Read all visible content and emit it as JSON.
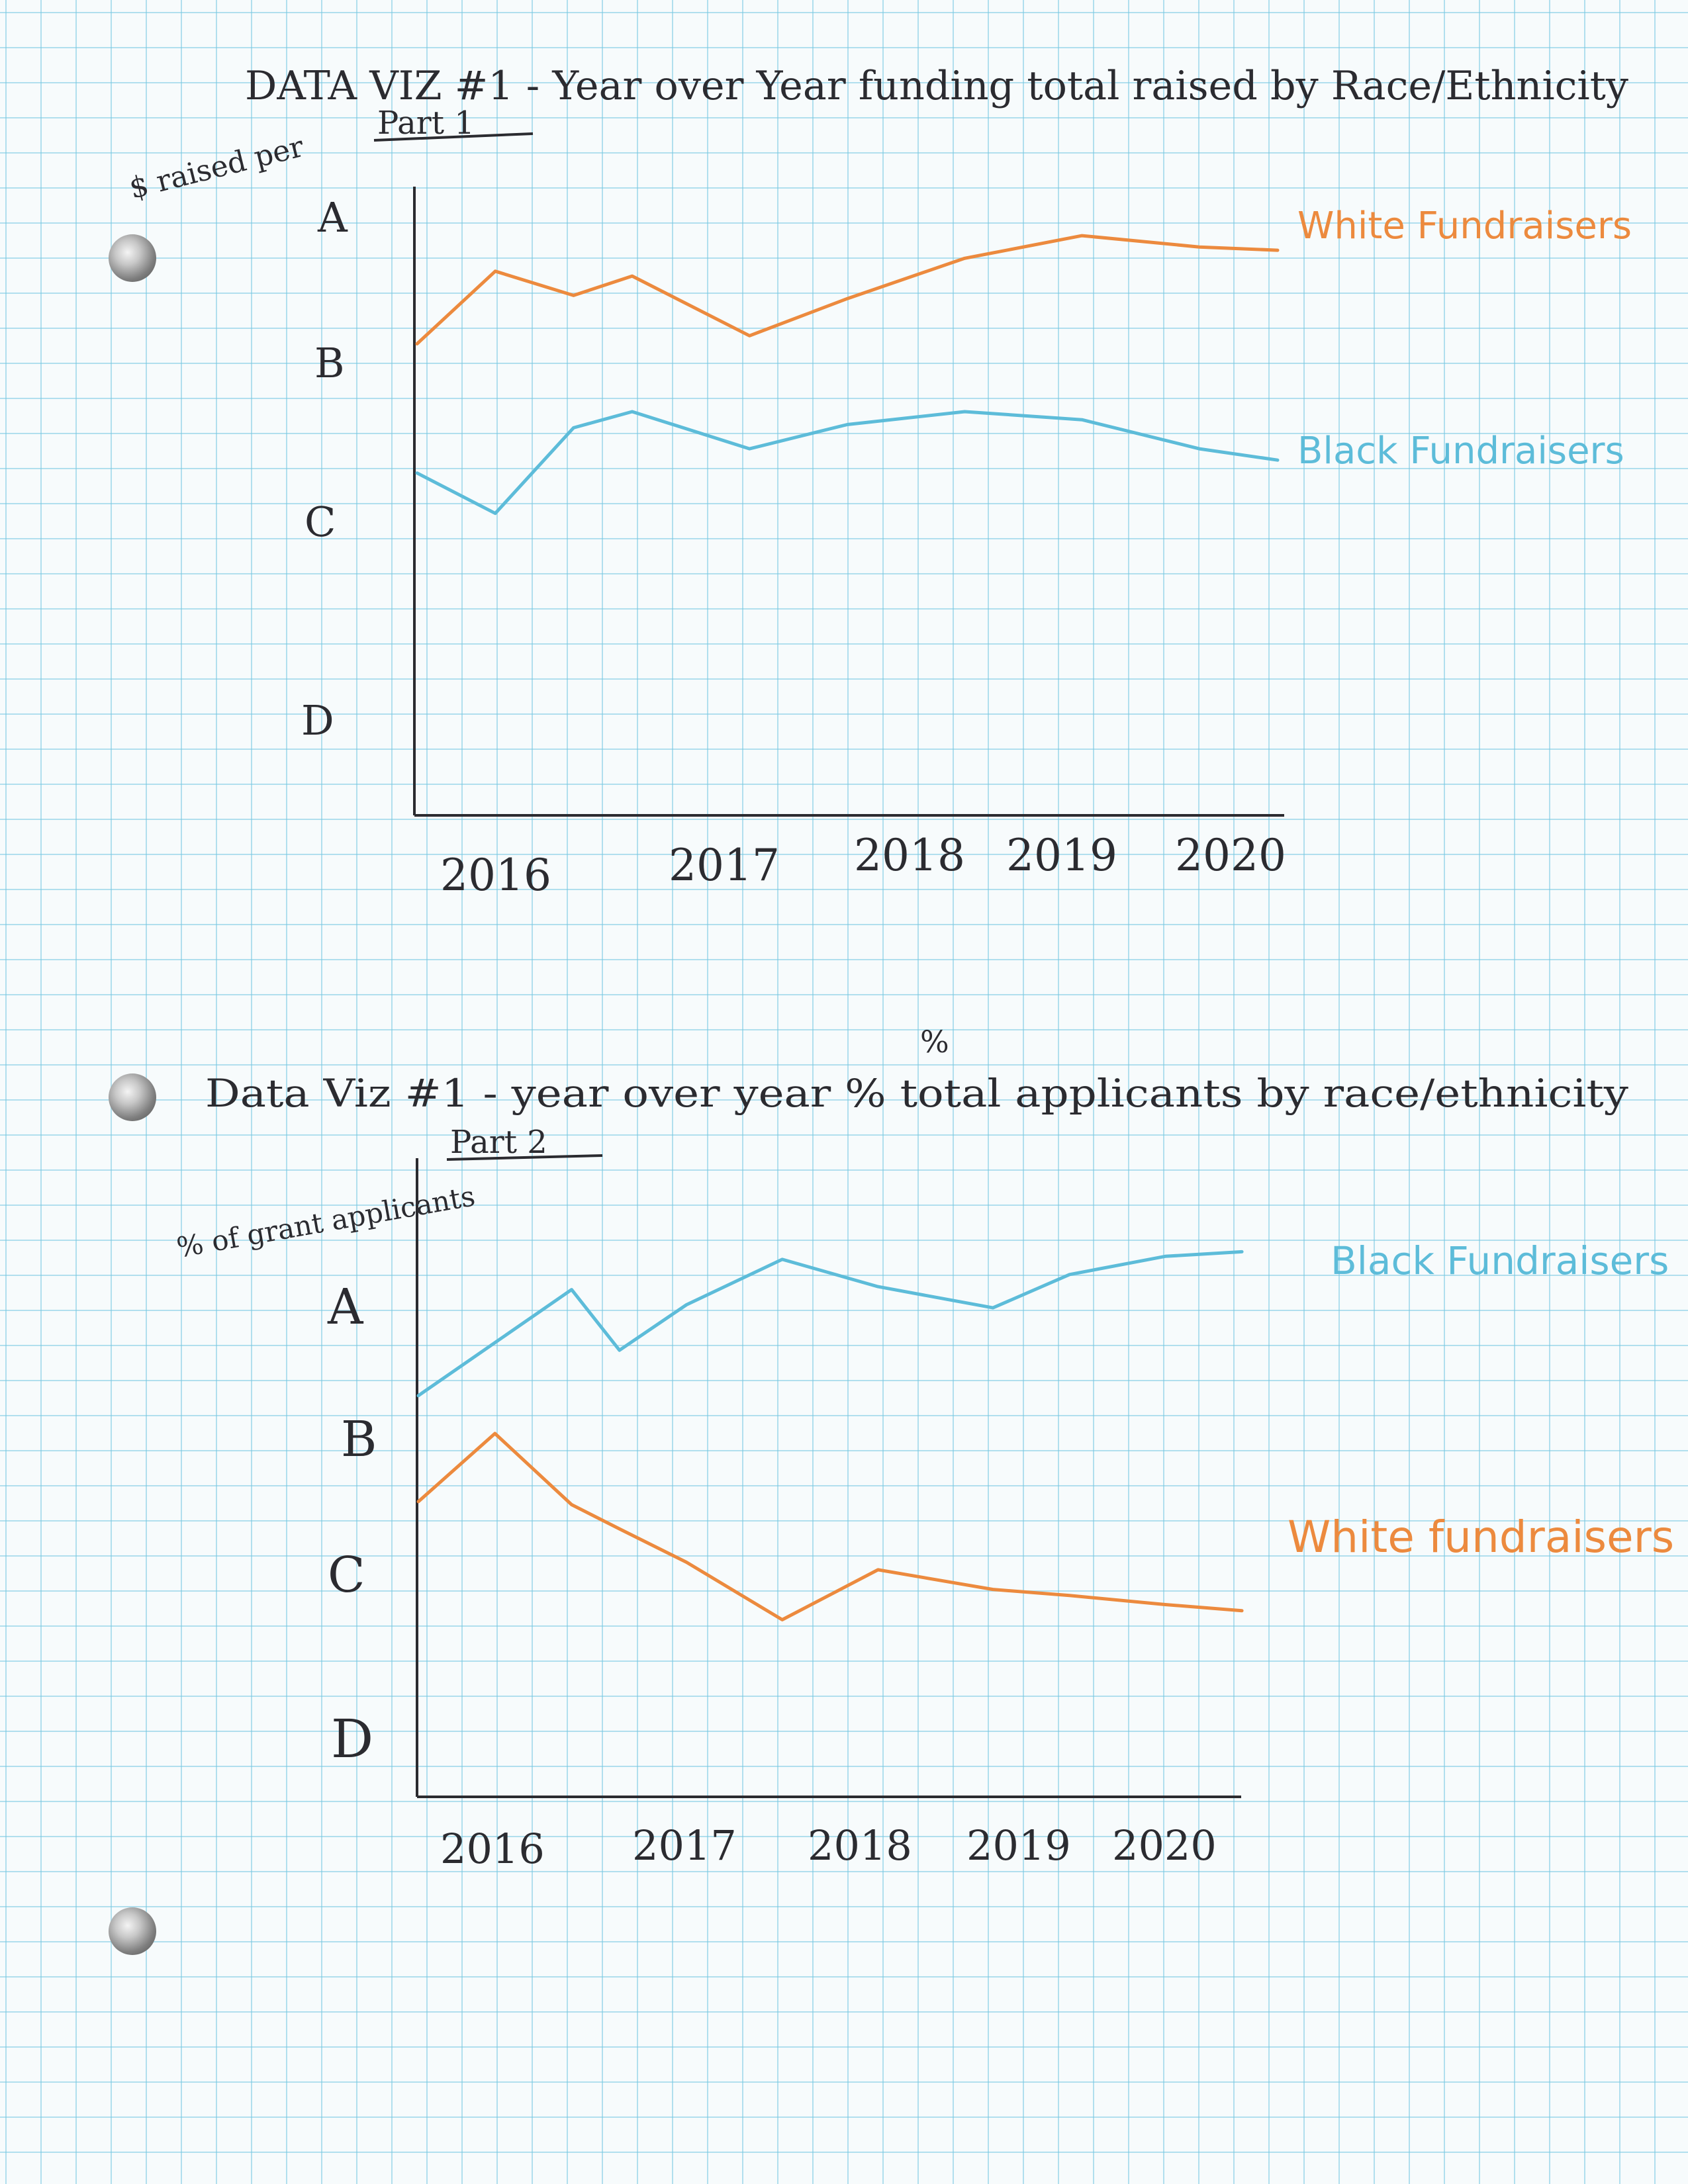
{
  "page": {
    "part2_title_insert": "%"
  },
  "colors": {
    "white_fundraisers": "#ec8a3e",
    "black_fundraisers": "#5dbcd9",
    "ink": "#2b2b30",
    "grid": "#8fd0e6"
  },
  "chart_data": [
    {
      "type": "line",
      "title": "DATA VIZ #1 - Year over Year funding total raised by Race/Ethnicity",
      "subtitle": "Part 1",
      "ylabel": "$ raised per",
      "xlabel": "",
      "x_ticks": [
        "2016",
        "2017",
        "2018",
        "2019",
        "2020"
      ],
      "y_ticks": [
        "A",
        "B",
        "C",
        "D"
      ],
      "ylim": [
        "D",
        "A"
      ],
      "grid": true,
      "legend": "right, labels at line ends",
      "x": [
        2015.8,
        2016.2,
        2016.6,
        2016.9,
        2017.5,
        2018.0,
        2018.6,
        2019.2,
        2019.8,
        2020.2
      ],
      "series": [
        {
          "name": "White Fundraisers",
          "color": "#ec8a3e",
          "values": [
            2.4,
            2.85,
            2.7,
            2.82,
            2.45,
            2.68,
            2.93,
            3.07,
            3.0,
            2.98
          ]
        },
        {
          "name": "Black Fundraisers",
          "color": "#5dbcd9",
          "values": [
            1.6,
            1.35,
            1.88,
            1.98,
            1.75,
            1.9,
            1.98,
            1.93,
            1.75,
            1.68
          ]
        }
      ]
    },
    {
      "type": "line",
      "title": "Data Viz #1 - year over year % total applicants by race/ethnicity",
      "subtitle": "Part 2",
      "ylabel": "% of grant applicants",
      "xlabel": "",
      "x_ticks": [
        "2016",
        "2017",
        "2018",
        "2019",
        "2020"
      ],
      "y_ticks": [
        "A",
        "B",
        "C",
        "D"
      ],
      "ylim": [
        "D",
        "A"
      ],
      "grid": true,
      "legend": "right, labels at line ends",
      "x": [
        2015.8,
        2016.2,
        2016.6,
        2016.85,
        2017.2,
        2017.7,
        2018.2,
        2018.8,
        2019.2,
        2019.7,
        2020.1
      ],
      "series": [
        {
          "name": "Black Fundraisers",
          "color": "#5dbcd9",
          "values": [
            2.3,
            2.65,
            3.0,
            2.6,
            2.9,
            3.2,
            3.02,
            2.88,
            3.1,
            3.22,
            3.25
          ]
        },
        {
          "name": "White fundraisers",
          "color": "#ec8a3e",
          "values": [
            1.6,
            2.05,
            1.58,
            1.42,
            1.2,
            0.82,
            1.15,
            1.02,
            0.98,
            0.92,
            0.88
          ]
        }
      ]
    }
  ]
}
